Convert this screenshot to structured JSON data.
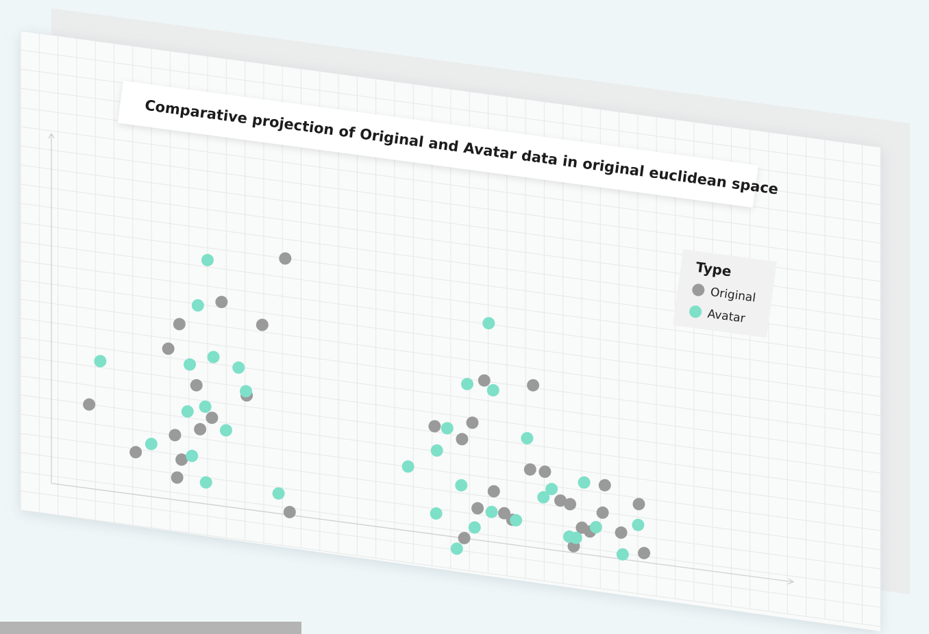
{
  "colors": {
    "original": "#9a9a9a",
    "avatar": "#7ee0c8",
    "background": "#eff6f8"
  },
  "chart_data": {
    "type": "scatter",
    "title": "Comparative projection of Original and Avatar data in original euclidean space",
    "xlabel": "",
    "ylabel": "",
    "grid": true,
    "legend": {
      "title": "Type",
      "placement": "top-right"
    },
    "xlim": [
      0,
      100
    ],
    "ylim": [
      0,
      100
    ],
    "series": [
      {
        "name": "Original",
        "color": "#9a9a9a",
        "points": [
          {
            "x": 5.1,
            "y": 24.5
          },
          {
            "x": 11.4,
            "y": 12.4
          },
          {
            "x": 15.8,
            "y": 43.9
          },
          {
            "x": 17.3,
            "y": 51.5
          },
          {
            "x": 16.7,
            "y": 18.9
          },
          {
            "x": 17.0,
            "y": 6.6
          },
          {
            "x": 17.6,
            "y": 12.0
          },
          {
            "x": 19.6,
            "y": 34.3
          },
          {
            "x": 20.1,
            "y": 21.6
          },
          {
            "x": 21.7,
            "y": 25.4
          },
          {
            "x": 26.4,
            "y": 33.3
          },
          {
            "x": 23.0,
            "y": 59.6
          },
          {
            "x": 28.5,
            "y": 54.5
          },
          {
            "x": 31.6,
            "y": 74.8
          },
          {
            "x": 32.2,
            "y": 0.9
          },
          {
            "x": 51.8,
            "y": 31.6
          },
          {
            "x": 55.5,
            "y": 28.9
          },
          {
            "x": 55.8,
            "y": 0.1
          },
          {
            "x": 56.9,
            "y": 34.1
          },
          {
            "x": 57.6,
            "y": 9.3
          },
          {
            "x": 58.5,
            "y": 46.9
          },
          {
            "x": 59.8,
            "y": 14.9
          },
          {
            "x": 61.2,
            "y": 8.9
          },
          {
            "x": 62.3,
            "y": 7.3
          },
          {
            "x": 64.7,
            "y": 22.7
          },
          {
            "x": 65.1,
            "y": 47.4
          },
          {
            "x": 66.7,
            "y": 22.6
          },
          {
            "x": 68.8,
            "y": 14.8
          },
          {
            "x": 70.1,
            "y": 14.1
          },
          {
            "x": 70.6,
            "y": 2.0
          },
          {
            "x": 71.7,
            "y": 7.7
          },
          {
            "x": 72.8,
            "y": 6.9
          },
          {
            "x": 74.5,
            "y": 12.9
          },
          {
            "x": 74.8,
            "y": 21.0
          },
          {
            "x": 77.0,
            "y": 7.8
          },
          {
            "x": 79.4,
            "y": 16.8
          },
          {
            "x": 80.1,
            "y": 2.7
          }
        ]
      },
      {
        "name": "Avatar",
        "color": "#7ee0c8",
        "points": [
          {
            "x": 6.6,
            "y": 37.6
          },
          {
            "x": 13.5,
            "y": 15.4
          },
          {
            "x": 18.4,
            "y": 26.3
          },
          {
            "x": 18.7,
            "y": 40.1
          },
          {
            "x": 19.0,
            "y": 13.5
          },
          {
            "x": 19.8,
            "y": 57.7
          },
          {
            "x": 20.8,
            "y": 28.4
          },
          {
            "x": 20.9,
            "y": 6.3
          },
          {
            "x": 21.1,
            "y": 71.3
          },
          {
            "x": 21.9,
            "y": 43.2
          },
          {
            "x": 23.6,
            "y": 22.3
          },
          {
            "x": 25.3,
            "y": 41.1
          },
          {
            "x": 26.3,
            "y": 34.5
          },
          {
            "x": 30.7,
            "y": 5.9
          },
          {
            "x": 48.2,
            "y": 18.8
          },
          {
            "x": 52.0,
            "y": 6.2
          },
          {
            "x": 52.1,
            "y": 24.6
          },
          {
            "x": 53.5,
            "y": 31.5
          },
          {
            "x": 54.8,
            "y": -3.3
          },
          {
            "x": 55.4,
            "y": 15.4
          },
          {
            "x": 56.2,
            "y": 45.2
          },
          {
            "x": 57.2,
            "y": 3.6
          },
          {
            "x": 59.1,
            "y": 63.8
          },
          {
            "x": 59.5,
            "y": 8.8
          },
          {
            "x": 59.7,
            "y": 44.4
          },
          {
            "x": 62.8,
            "y": 7.3
          },
          {
            "x": 64.3,
            "y": 31.7
          },
          {
            "x": 66.5,
            "y": 15.1
          },
          {
            "x": 67.6,
            "y": 17.8
          },
          {
            "x": 70.0,
            "y": 4.6
          },
          {
            "x": 70.9,
            "y": 4.5
          },
          {
            "x": 72.0,
            "y": 21.0
          },
          {
            "x": 73.6,
            "y": 8.4
          },
          {
            "x": 77.2,
            "y": 1.5
          },
          {
            "x": 79.3,
            "y": 10.7
          }
        ]
      }
    ]
  }
}
